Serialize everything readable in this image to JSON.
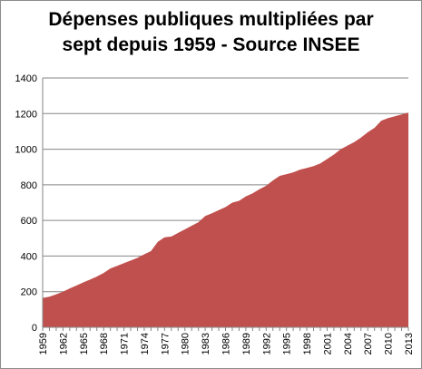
{
  "chart_data": {
    "type": "area",
    "title_lines": [
      "Dépenses publiques multipliées par",
      "sept depuis 1959 - Source INSEE"
    ],
    "xlabel": "",
    "ylabel": "",
    "ylim": [
      0,
      1400
    ],
    "yticks": [
      0,
      200,
      400,
      600,
      800,
      1000,
      1200,
      1400
    ],
    "xtick_labels": [
      "1959",
      "1962",
      "1965",
      "1968",
      "1971",
      "1974",
      "1977",
      "1980",
      "1983",
      "1986",
      "1989",
      "1992",
      "1995",
      "1998",
      "2001",
      "2004",
      "2007",
      "2010",
      "2013"
    ],
    "grid": "horizontal",
    "series": [
      {
        "color": "#c0504d",
        "x": [
          1959,
          1960,
          1961,
          1962,
          1963,
          1964,
          1965,
          1966,
          1967,
          1968,
          1969,
          1970,
          1971,
          1972,
          1973,
          1974,
          1975,
          1976,
          1977,
          1978,
          1979,
          1980,
          1981,
          1982,
          1983,
          1984,
          1985,
          1986,
          1987,
          1988,
          1989,
          1990,
          1991,
          1992,
          1993,
          1994,
          1995,
          1996,
          1997,
          1998,
          1999,
          2000,
          2001,
          2002,
          2003,
          2004,
          2005,
          2006,
          2007,
          2008,
          2009,
          2010,
          2011,
          2012,
          2013
        ],
        "values": [
          165,
          172,
          185,
          200,
          218,
          235,
          252,
          268,
          285,
          305,
          330,
          345,
          360,
          375,
          390,
          410,
          428,
          480,
          505,
          510,
          530,
          550,
          570,
          590,
          625,
          640,
          658,
          675,
          700,
          710,
          735,
          752,
          775,
          795,
          825,
          850,
          860,
          870,
          885,
          895,
          905,
          920,
          945,
          970,
          1000,
          1020,
          1040,
          1065,
          1095,
          1120,
          1160,
          1175,
          1185,
          1195,
          1205
        ]
      }
    ]
  }
}
